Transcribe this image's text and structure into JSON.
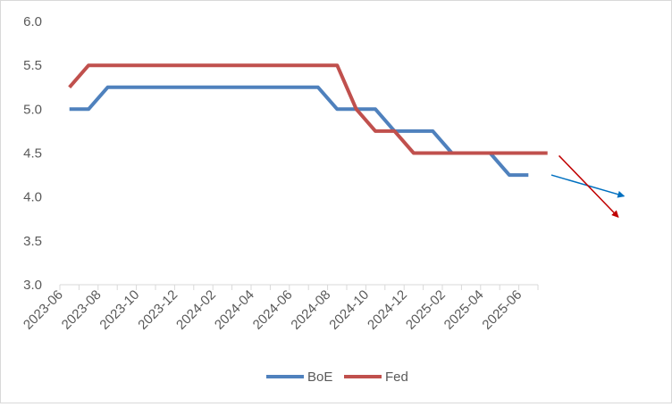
{
  "chart_data": {
    "type": "line",
    "title": "",
    "xlabel": "",
    "ylabel": "",
    "ylim": [
      3.0,
      6.0
    ],
    "ytick_labels": [
      "3.0",
      "3.5",
      "4.0",
      "4.5",
      "5.0",
      "5.5",
      "6.0"
    ],
    "x_tick_labels": [
      "2023-06",
      "2023-08",
      "2023-10",
      "2023-12",
      "2024-02",
      "2024-04",
      "2024-06",
      "2024-08",
      "2024-10",
      "2024-12",
      "2025-02",
      "2025-04",
      "2025-06"
    ],
    "grid": false,
    "legend_position": "bottom",
    "series": [
      {
        "name": "BoE",
        "color": "#4f81bd",
        "x": [
          0,
          1,
          2,
          3,
          4,
          5,
          6,
          7,
          8,
          9,
          10,
          11,
          12,
          13,
          14,
          15,
          16,
          17,
          18,
          19,
          20,
          21,
          22,
          23,
          24,
          25
        ],
        "values": [
          5.0,
          5.0,
          5.25,
          5.25,
          5.25,
          5.25,
          5.25,
          5.25,
          5.25,
          5.25,
          5.25,
          5.25,
          5.25,
          5.25,
          5.0,
          5.0,
          5.0,
          4.75,
          4.75,
          4.75,
          4.5,
          4.5,
          4.5,
          4.25,
          4.25,
          null
        ]
      },
      {
        "name": "Fed",
        "color": "#c0504d",
        "x": [
          0,
          1,
          2,
          3,
          4,
          5,
          6,
          7,
          8,
          9,
          10,
          11,
          12,
          13,
          14,
          15,
          16,
          17,
          18,
          19,
          20,
          21,
          22,
          23,
          24,
          25
        ],
        "values": [
          5.25,
          5.5,
          5.5,
          5.5,
          5.5,
          5.5,
          5.5,
          5.5,
          5.5,
          5.5,
          5.5,
          5.5,
          5.5,
          5.5,
          5.5,
          5.0,
          4.75,
          4.75,
          4.5,
          4.5,
          4.5,
          4.5,
          4.5,
          4.5,
          4.5,
          4.5
        ]
      }
    ],
    "annotations": [
      {
        "type": "arrow",
        "name": "boe-projection-arrow",
        "color": "#0070c0",
        "from": {
          "x": 25.2,
          "y": 4.25
        },
        "to": {
          "x": 29.0,
          "y": 4.01
        }
      },
      {
        "type": "arrow",
        "name": "fed-projection-arrow",
        "color": "#c00000",
        "from": {
          "x": 25.6,
          "y": 4.47
        },
        "to": {
          "x": 28.7,
          "y": 3.77
        }
      }
    ]
  }
}
